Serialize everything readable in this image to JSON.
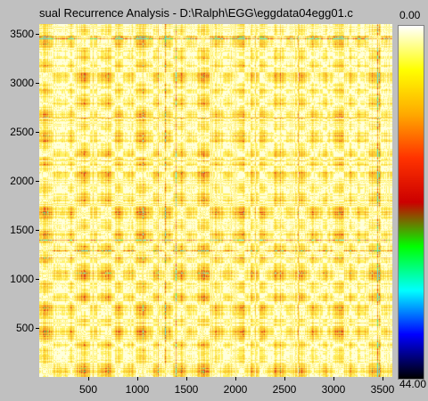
{
  "window": {
    "title": "sual Recurrence Analysis  -  D:\\Ralph\\EGG\\eggdata04egg01.c"
  },
  "plot": {
    "x_range": [
      0,
      3600
    ],
    "y_range": [
      0,
      3600
    ],
    "y_ticks": [
      "500",
      "1000",
      "1500",
      "2000",
      "2500",
      "3000",
      "3500"
    ],
    "x_ticks": [
      "500",
      "1000",
      "1500",
      "2000",
      "2500",
      "3000",
      "3500"
    ],
    "y_tick_values": [
      500,
      1000,
      1500,
      2000,
      2500,
      3000,
      3500
    ],
    "x_tick_values": [
      500,
      1000,
      1500,
      2000,
      2500,
      3000,
      3500
    ]
  },
  "colorbar": {
    "top_label": "0.00",
    "bottom_label": "44.00",
    "colors": [
      "#ffffff",
      "#ffff00",
      "#ffaa00",
      "#ff3300",
      "#cc0000",
      "#00ff00",
      "#00ffff",
      "#0000ff",
      "#000000"
    ]
  }
}
